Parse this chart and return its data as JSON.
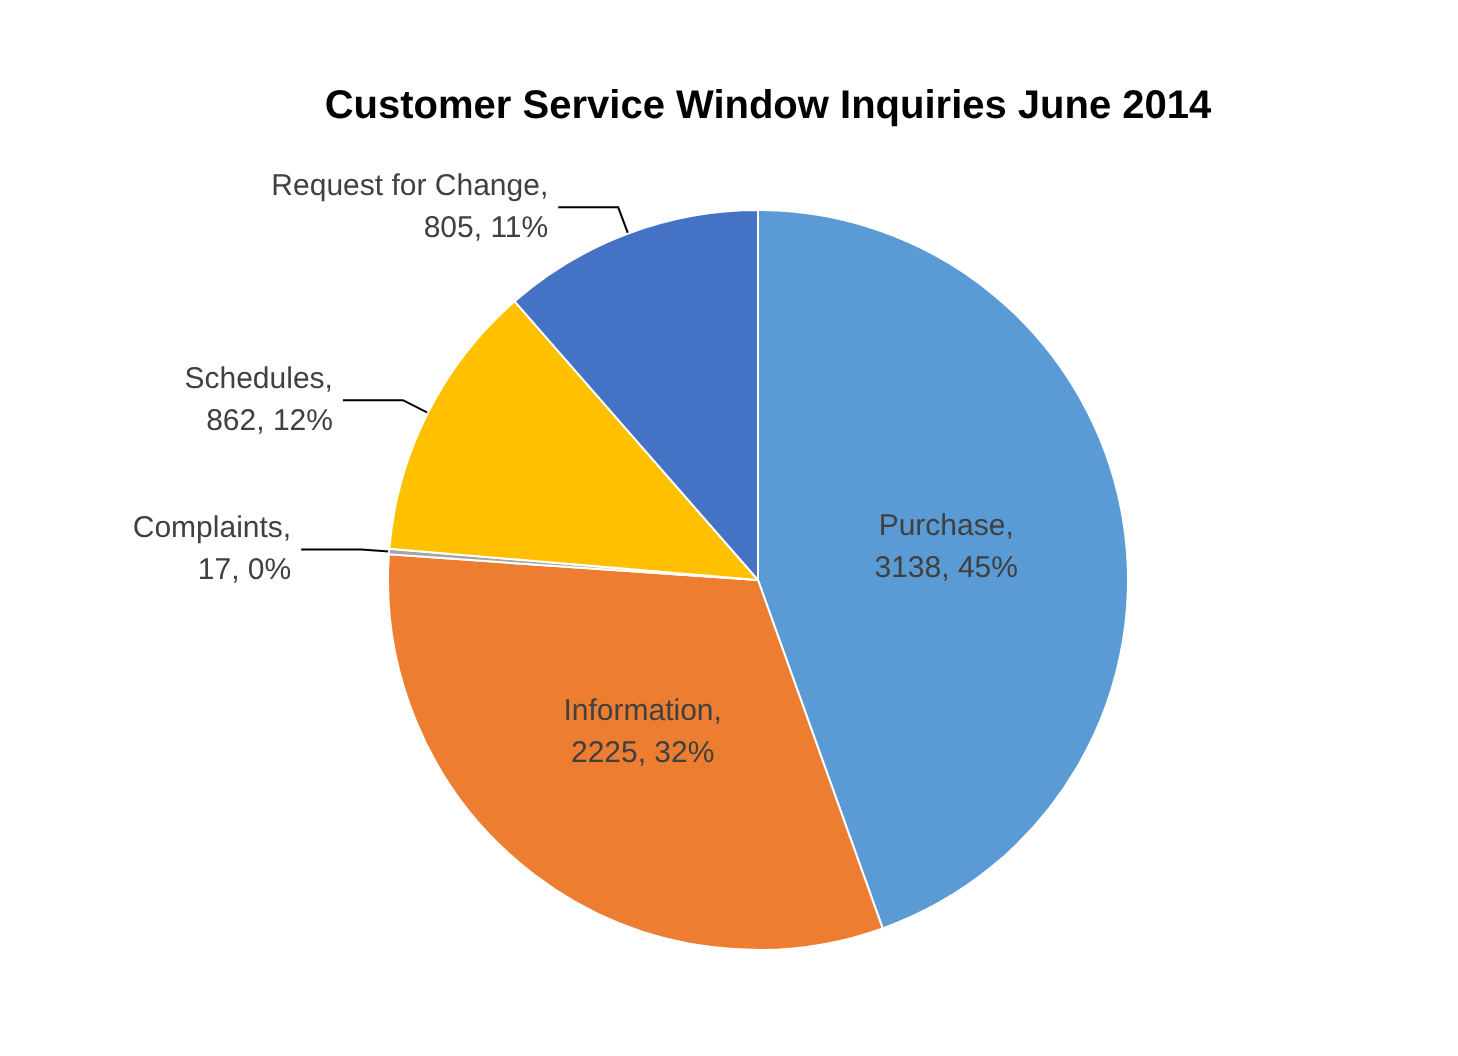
{
  "chart_data": {
    "type": "pie",
    "title": "Customer Service Window Inquiries June 2014",
    "categories": [
      "Purchase",
      "Information",
      "Complaints",
      "Schedules",
      "Request for Change"
    ],
    "values": [
      3138,
      2225,
      17,
      862,
      805
    ],
    "colors": [
      "#5b9bd5",
      "#ed7d31",
      "#a5a5a5",
      "#ffc000",
      "#4472c4"
    ],
    "value_labels": [
      ", 3138, 45%",
      ", 2225, 32%",
      ", 17, 0%",
      ", 862, 12%",
      ", 805, 11%"
    ],
    "legend": false
  }
}
